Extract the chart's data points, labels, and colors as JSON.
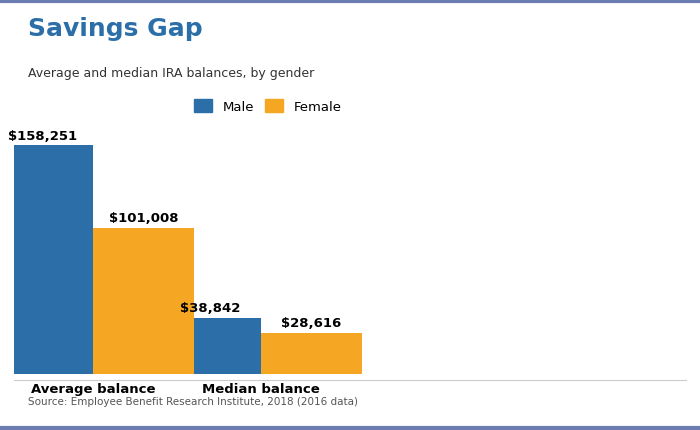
{
  "title": "Savings Gap",
  "subtitle": "Average and median IRA balances, by gender",
  "source": "Source: Employee Benefit Research Institute, 2018 (2016 data)",
  "categories": [
    "Average balance",
    "Median balance"
  ],
  "male_values": [
    158251,
    38842
  ],
  "female_values": [
    101008,
    28616
  ],
  "male_labels": [
    "$158,251",
    "$38,842"
  ],
  "female_labels": [
    "$101,008",
    "$28,616"
  ],
  "male_color": "#2B6EA8",
  "female_color": "#F5A623",
  "title_color": "#2B6EA8",
  "subtitle_color": "#333333",
  "source_color": "#555555",
  "ylim": [
    0,
    185000
  ],
  "bar_width": 0.32,
  "background_color": "#FFFFFF",
  "legend_male": "Male",
  "legend_female": "Female",
  "border_color": "#6B7CB0",
  "photo_bg": "#E8E8E8"
}
